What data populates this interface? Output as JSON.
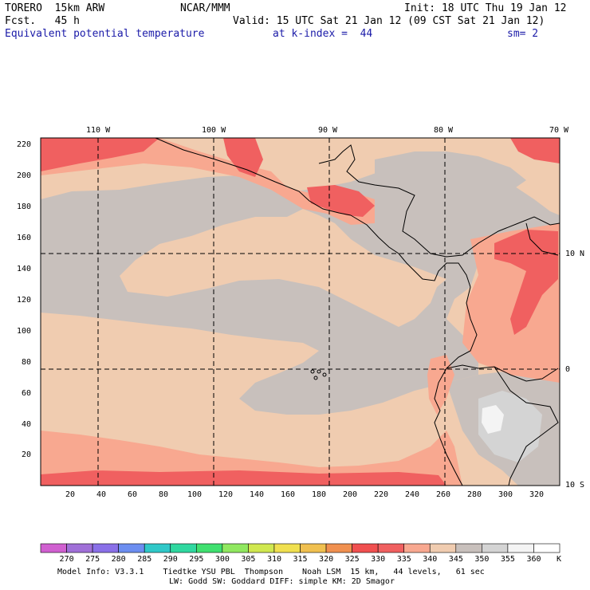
{
  "header": {
    "model": "TORERO  15km ARW",
    "center": "NCAR/MMM",
    "init": "Init: 18 UTC Thu 19 Jan 12",
    "fcst": "Fcst.   45 h",
    "valid": "Valid: 15 UTC Sat 21 Jan 12 (09 CST Sat 21 Jan 12)",
    "field": "Equivalent potential temperature",
    "level": "at k-index =  44",
    "smooth": "sm= 2"
  },
  "lon_labels": [
    "110 W",
    "100 W",
    "90 W",
    "80 W",
    "70 W"
  ],
  "lat_labels": [
    "10 N",
    "0",
    "10 S"
  ],
  "y_ticks": [
    "20",
    "40",
    "60",
    "80",
    "100",
    "120",
    "140",
    "160",
    "180",
    "200",
    "220"
  ],
  "x_ticks": [
    "20",
    "40",
    "60",
    "80",
    "100",
    "120",
    "140",
    "160",
    "180",
    "200",
    "220",
    "240",
    "260",
    "280",
    "300",
    "320"
  ],
  "colorbar": {
    "labels": [
      "270",
      "275",
      "280",
      "285",
      "290",
      "295",
      "300",
      "305",
      "310",
      "315",
      "320",
      "325",
      "330",
      "335",
      "340",
      "345",
      "350",
      "355",
      "360"
    ],
    "unit": "K",
    "colors": [
      "#d060d0",
      "#a070d8",
      "#8a70e8",
      "#6c8ef0",
      "#30c8c8",
      "#30d8a0",
      "#40e070",
      "#90e860",
      "#d0e850",
      "#f0e050",
      "#f0c050",
      "#f09050",
      "#f05050",
      "#f06060",
      "#f8a890",
      "#f0ccb0",
      "#c8c0bc",
      "#d4d4d4",
      "#f4f4f4",
      "#ffffff"
    ]
  },
  "map_colors": {
    "tan": "#f0ccb0",
    "gray": "#c8c0bc",
    "salmon": "#f8a890",
    "red": "#f06060",
    "lightgray": "#d4d4d4",
    "white": "#f4f4f4"
  },
  "footer": {
    "line1": "Model Info: V3.3.1    Tiedtke YSU PBL  Thompson    Noah LSM  15 km,   44 levels,   61 sec",
    "line2": "LW: Godd SW: Goddard DIFF: simple KM: 2D Smagor"
  }
}
